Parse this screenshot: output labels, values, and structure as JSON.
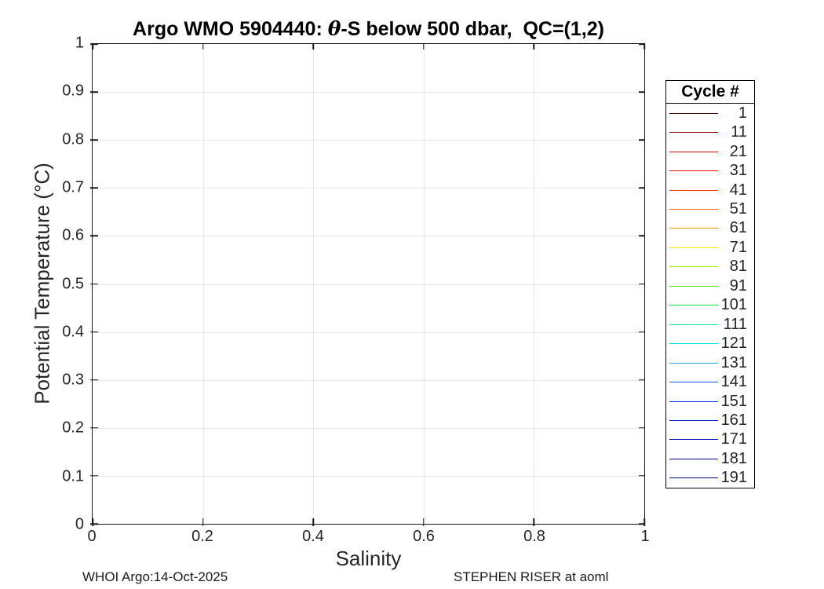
{
  "title": {
    "prefix": "Argo WMO 5904440: ",
    "theta": "θ",
    "suffix": "-S below 500 dbar,  QC=(1,2)"
  },
  "axes": {
    "xlabel": "Salinity",
    "ylabel": "Potential Temperature (°C)"
  },
  "legend": {
    "title": "Cycle #",
    "entries": [
      {
        "label": "1",
        "color": "#420000"
      },
      {
        "label": "11",
        "color": "#7E0000"
      },
      {
        "label": "21",
        "color": "#CC0000"
      },
      {
        "label": "31",
        "color": "#F01000"
      },
      {
        "label": "41",
        "color": "#FF3A00"
      },
      {
        "label": "51",
        "color": "#FF6400"
      },
      {
        "label": "61",
        "color": "#FF9800"
      },
      {
        "label": "71",
        "color": "#EDE800"
      },
      {
        "label": "81",
        "color": "#A9EF00"
      },
      {
        "label": "91",
        "color": "#4CE600"
      },
      {
        "label": "101",
        "color": "#00E455"
      },
      {
        "label": "111",
        "color": "#00E49C"
      },
      {
        "label": "121",
        "color": "#00DCDC"
      },
      {
        "label": "131",
        "color": "#23A3E9"
      },
      {
        "label": "141",
        "color": "#0E5CE6"
      },
      {
        "label": "151",
        "color": "#0034DC"
      },
      {
        "label": "161",
        "color": "#001EC8"
      },
      {
        "label": "171",
        "color": "#000CB4"
      },
      {
        "label": "181",
        "color": "#00009B"
      },
      {
        "label": "191",
        "color": "#00007E"
      }
    ]
  },
  "footer": {
    "left": "WHOI Argo:14-Oct-2025",
    "right": "STEPHEN RISER at aoml"
  },
  "chart_data": {
    "type": "line",
    "title": "Argo WMO 5904440: θ-S below 500 dbar, QC=(1,2)",
    "xlabel": "Salinity",
    "ylabel": "Potential Temperature (°C)",
    "xlim": [
      0,
      1
    ],
    "ylim": [
      0,
      1
    ],
    "x_ticks": [
      0,
      0.2,
      0.4,
      0.6,
      0.8,
      1
    ],
    "x_tick_labels": [
      "0",
      "0.2",
      "0.4",
      "0.6",
      "0.8",
      "1"
    ],
    "y_ticks": [
      0,
      0.1,
      0.2,
      0.3,
      0.4,
      0.5,
      0.6,
      0.7,
      0.8,
      0.9,
      1
    ],
    "y_tick_labels": [
      "0",
      "0.1",
      "0.2",
      "0.3",
      "0.4",
      "0.5",
      "0.6",
      "0.7",
      "0.8",
      "0.9",
      "1"
    ],
    "grid": true,
    "grid_color": "#e7e7e7",
    "legend_title": "Cycle #",
    "legend_position": "outside-right",
    "series": [
      {
        "name": "1",
        "color": "#420000",
        "x": [],
        "y": []
      },
      {
        "name": "11",
        "color": "#7E0000",
        "x": [],
        "y": []
      },
      {
        "name": "21",
        "color": "#CC0000",
        "x": [],
        "y": []
      },
      {
        "name": "31",
        "color": "#F01000",
        "x": [],
        "y": []
      },
      {
        "name": "41",
        "color": "#FF3A00",
        "x": [],
        "y": []
      },
      {
        "name": "51",
        "color": "#FF6400",
        "x": [],
        "y": []
      },
      {
        "name": "61",
        "color": "#FF9800",
        "x": [],
        "y": []
      },
      {
        "name": "71",
        "color": "#EDE800",
        "x": [],
        "y": []
      },
      {
        "name": "81",
        "color": "#A9EF00",
        "x": [],
        "y": []
      },
      {
        "name": "91",
        "color": "#4CE600",
        "x": [],
        "y": []
      },
      {
        "name": "101",
        "color": "#00E455",
        "x": [],
        "y": []
      },
      {
        "name": "111",
        "color": "#00E49C",
        "x": [],
        "y": []
      },
      {
        "name": "121",
        "color": "#00DCDC",
        "x": [],
        "y": []
      },
      {
        "name": "131",
        "color": "#23A3E9",
        "x": [],
        "y": []
      },
      {
        "name": "141",
        "color": "#0E5CE6",
        "x": [],
        "y": []
      },
      {
        "name": "151",
        "color": "#0034DC",
        "x": [],
        "y": []
      },
      {
        "name": "161",
        "color": "#001EC8",
        "x": [],
        "y": []
      },
      {
        "name": "171",
        "color": "#000CB4",
        "x": [],
        "y": []
      },
      {
        "name": "181",
        "color": "#00009B",
        "x": [],
        "y": []
      },
      {
        "name": "191",
        "color": "#00007E",
        "x": [],
        "y": []
      }
    ],
    "note": "Plot area contains no visible data points; axes at default 0-1 range."
  }
}
